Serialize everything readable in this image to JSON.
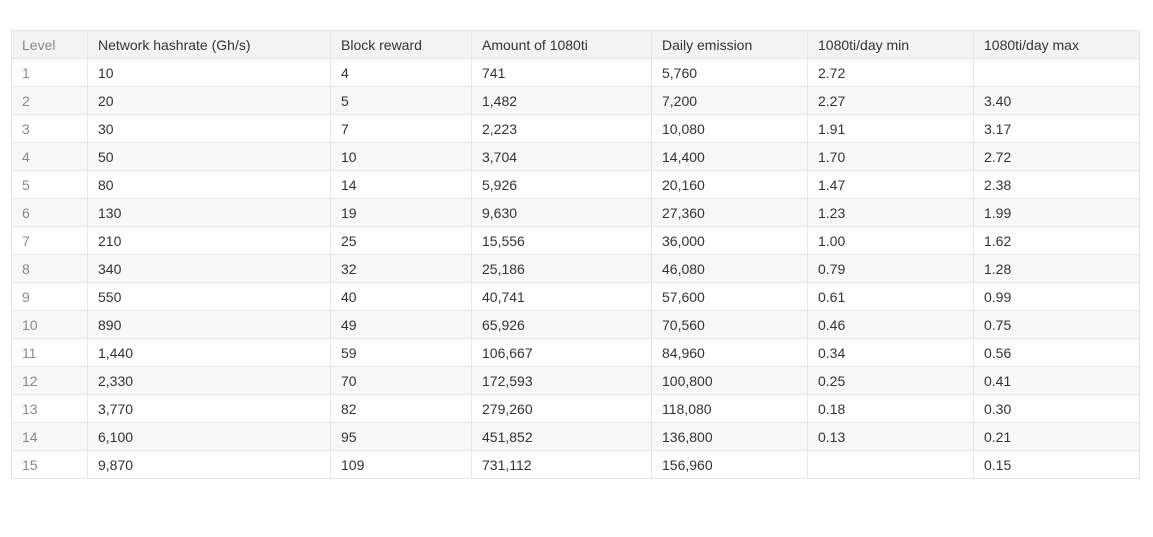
{
  "table": {
    "headers": [
      "Level",
      "Network hashrate (Gh/s)",
      "Block reward",
      "Amount of 1080ti",
      "Daily emission",
      "1080ti/day  min",
      "1080ti/day max"
    ],
    "rows": [
      [
        "1",
        "10",
        "4",
        "741",
        "5,760",
        "2.72",
        ""
      ],
      [
        "2",
        "20",
        "5",
        "1,482",
        "7,200",
        "2.27",
        "3.40"
      ],
      [
        "3",
        "30",
        "7",
        "2,223",
        "10,080",
        "1.91",
        "3.17"
      ],
      [
        "4",
        "50",
        "10",
        "3,704",
        "14,400",
        "1.70",
        "2.72"
      ],
      [
        "5",
        "80",
        "14",
        "5,926",
        "20,160",
        "1.47",
        "2.38"
      ],
      [
        "6",
        "130",
        "19",
        "9,630",
        "27,360",
        "1.23",
        "1.99"
      ],
      [
        "7",
        "210",
        "25",
        "15,556",
        "36,000",
        "1.00",
        "1.62"
      ],
      [
        "8",
        "340",
        "32",
        "25,186",
        "46,080",
        "0.79",
        "1.28"
      ],
      [
        "9",
        "550",
        "40",
        "40,741",
        "57,600",
        "0.61",
        "0.99"
      ],
      [
        "10",
        "890",
        "49",
        "65,926",
        "70,560",
        "0.46",
        "0.75"
      ],
      [
        "11",
        "1,440",
        "59",
        "106,667",
        "84,960",
        "0.34",
        "0.56"
      ],
      [
        "12",
        "2,330",
        "70",
        "172,593",
        "100,800",
        "0.25",
        "0.41"
      ],
      [
        "13",
        "3,770",
        "82",
        "279,260",
        "118,080",
        "0.18",
        "0.30"
      ],
      [
        "14",
        "6,100",
        "95",
        "451,852",
        "136,800",
        "0.13",
        "0.21"
      ],
      [
        "15",
        "9,870",
        "109",
        "731,112",
        "156,960",
        "",
        "0.15"
      ]
    ]
  }
}
